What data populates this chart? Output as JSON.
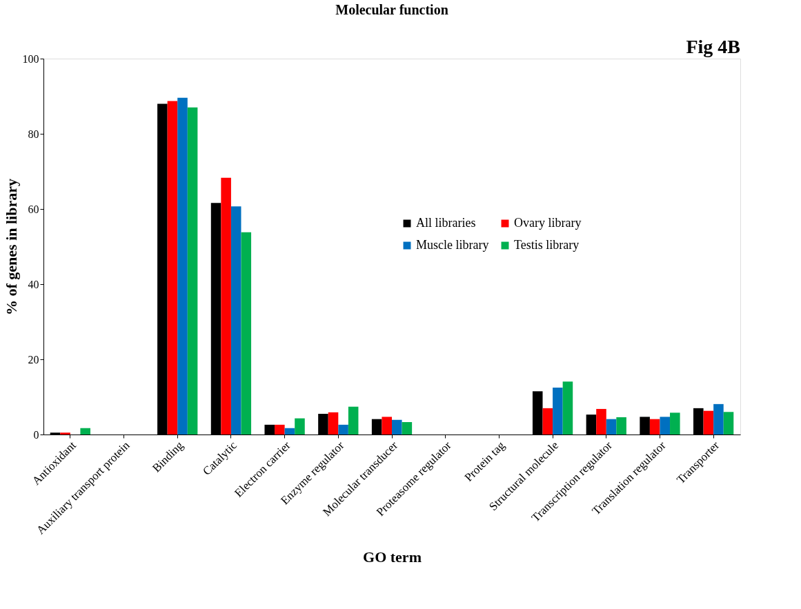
{
  "chart_data": {
    "type": "bar",
    "title": "Molecular function",
    "xlabel": "GO term",
    "ylabel": "% of genes in library",
    "annotations": [
      "Fig 4B"
    ],
    "categories": [
      "Antioxidant",
      "Auxiliary transport protein",
      "Binding",
      "Catalytic",
      "Electron carrier",
      "Enzyme regulator",
      "Molecular transducer",
      "Proteasome regulator",
      "Protein tag",
      "Structural molecule",
      "Transcription regulator",
      "Translation regulator",
      "Transporter"
    ],
    "series": [
      {
        "name": "All libraries",
        "color": "#000000",
        "values": [
          0.5,
          0,
          88.0,
          61.6,
          2.6,
          5.5,
          4.1,
          0,
          0,
          11.5,
          5.3,
          4.7,
          7.0
        ]
      },
      {
        "name": "Ovary library",
        "color": "#ff0000",
        "values": [
          0.5,
          0,
          88.7,
          68.3,
          2.6,
          5.9,
          4.7,
          0,
          0,
          7.0,
          6.8,
          4.1,
          6.3
        ]
      },
      {
        "name": "Muscle library",
        "color": "#0070c0",
        "values": [
          0,
          0,
          89.6,
          60.7,
          1.7,
          2.6,
          3.9,
          0,
          0,
          12.5,
          4.1,
          4.7,
          8.1
        ]
      },
      {
        "name": "Testis library",
        "color": "#00b050",
        "values": [
          1.7,
          0,
          87.0,
          53.8,
          4.3,
          7.4,
          3.3,
          0,
          0,
          14.1,
          4.6,
          5.8,
          6.0
        ]
      }
    ],
    "ylim": [
      0,
      100
    ],
    "yticks": [
      0,
      20,
      40,
      60,
      80,
      100
    ],
    "grid": false,
    "legend": "top right"
  }
}
